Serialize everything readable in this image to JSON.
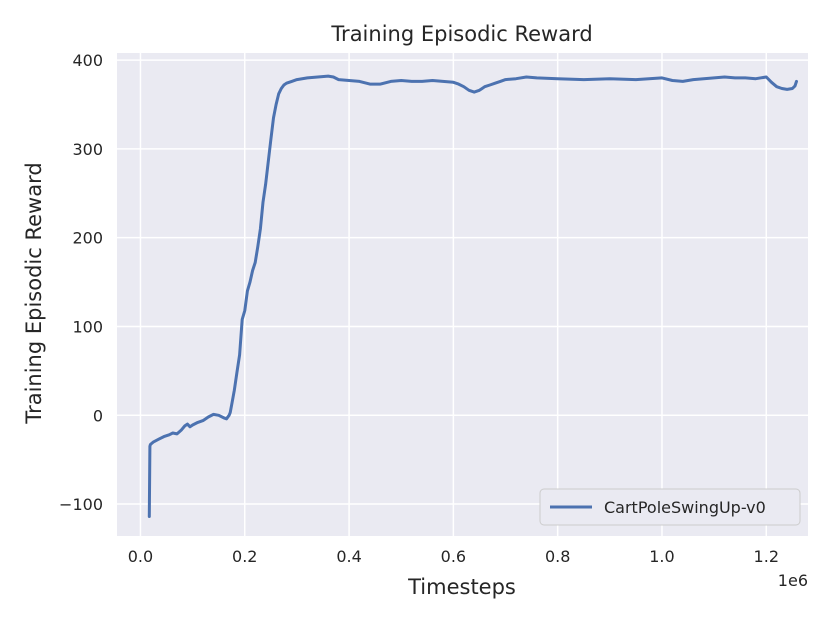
{
  "chart_data": {
    "type": "line",
    "title": "Training Episodic Reward",
    "xlabel": "Timesteps",
    "ylabel": "Training Episodic Reward",
    "x_offset_text": "1e6",
    "xlim": [
      -0.045,
      1.28
    ],
    "ylim": [
      -136,
      408
    ],
    "x_ticks": [
      0.0,
      0.2,
      0.4,
      0.6,
      0.8,
      1.0,
      1.2
    ],
    "x_tick_labels": [
      "0.0",
      "0.2",
      "0.4",
      "0.6",
      "0.8",
      "1.0",
      "1.2"
    ],
    "y_ticks": [
      -100,
      0,
      100,
      200,
      300,
      400
    ],
    "y_tick_labels": [
      "−100",
      "0",
      "100",
      "200",
      "300",
      "400"
    ],
    "grid": true,
    "legend_position": "lower-right",
    "colors": {
      "background": "#eaeaf2",
      "grid": "#ffffff",
      "series": "#4c72b0",
      "text": "#262626"
    },
    "series": [
      {
        "name": "CartPoleSwingUp-v0",
        "x": [
          0.017,
          0.018,
          0.019,
          0.025,
          0.035,
          0.045,
          0.055,
          0.062,
          0.07,
          0.078,
          0.085,
          0.09,
          0.095,
          0.1,
          0.11,
          0.12,
          0.13,
          0.14,
          0.15,
          0.16,
          0.165,
          0.17,
          0.172,
          0.175,
          0.18,
          0.185,
          0.19,
          0.195,
          0.2,
          0.205,
          0.21,
          0.215,
          0.22,
          0.225,
          0.23,
          0.235,
          0.24,
          0.245,
          0.25,
          0.255,
          0.26,
          0.265,
          0.27,
          0.275,
          0.28,
          0.29,
          0.3,
          0.32,
          0.34,
          0.36,
          0.37,
          0.38,
          0.4,
          0.42,
          0.44,
          0.46,
          0.48,
          0.5,
          0.52,
          0.54,
          0.56,
          0.58,
          0.6,
          0.61,
          0.62,
          0.63,
          0.64,
          0.65,
          0.655,
          0.66,
          0.67,
          0.68,
          0.69,
          0.7,
          0.72,
          0.74,
          0.76,
          0.8,
          0.85,
          0.9,
          0.95,
          1.0,
          1.02,
          1.04,
          1.06,
          1.08,
          1.1,
          1.12,
          1.14,
          1.16,
          1.18,
          1.2,
          1.21,
          1.22,
          1.23,
          1.24,
          1.25,
          1.255,
          1.258
        ],
        "y": [
          -114,
          -35,
          -33,
          -30,
          -27,
          -24,
          -22,
          -20,
          -21,
          -17,
          -12,
          -10,
          -13,
          -11,
          -8,
          -6,
          -2,
          1,
          0,
          -3,
          -4,
          0,
          3,
          12,
          28,
          48,
          68,
          108,
          118,
          140,
          150,
          163,
          172,
          190,
          210,
          240,
          260,
          285,
          310,
          335,
          350,
          362,
          368,
          372,
          374,
          376,
          378,
          380,
          381,
          382,
          381,
          378,
          377,
          376,
          373,
          373,
          376,
          377,
          376,
          376,
          377,
          376,
          375,
          373,
          370,
          366,
          364,
          366,
          368,
          370,
          372,
          374,
          376,
          378,
          379,
          381,
          380,
          379,
          378,
          379,
          378,
          380,
          377,
          376,
          378,
          379,
          380,
          381,
          380,
          380,
          379,
          381,
          375,
          370,
          368,
          367,
          368,
          371,
          376
        ]
      }
    ]
  }
}
